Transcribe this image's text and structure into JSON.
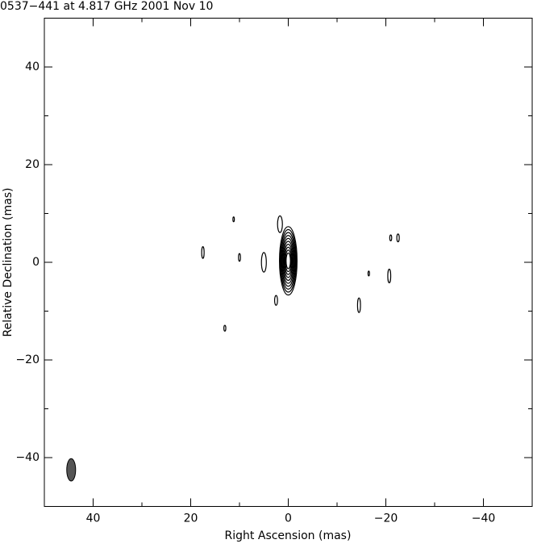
{
  "chart_data": {
    "type": "contour",
    "title": "0537−441 at 4.817 GHz 2001 Nov 10",
    "x_label": "Right Ascension  (mas)",
    "y_label": "Relative Declination  (mas)",
    "xlim": [
      50,
      -50
    ],
    "ylim": [
      -50,
      50
    ],
    "xticks": [
      40,
      20,
      0,
      {
        "value": -20,
        "label": "−20"
      },
      {
        "value": -40,
        "label": "−40"
      }
    ],
    "yticks": [
      {
        "value": -40,
        "label": "−40"
      },
      {
        "value": -20,
        "label": "−20"
      },
      0,
      20,
      40
    ],
    "xminorticks": [
      30,
      10,
      -10,
      -30
    ],
    "yminorticks": [
      -30,
      -10,
      10,
      30
    ],
    "contours": [
      {
        "x": 0,
        "y": 0.3,
        "rx": 1.8,
        "ry": 7
      },
      {
        "x": 0,
        "y": 0.3,
        "rx": 1.65,
        "ry": 6.4
      },
      {
        "x": 0,
        "y": 0.3,
        "rx": 1.5,
        "ry": 5.8
      },
      {
        "x": 0,
        "y": 0.3,
        "rx": 1.35,
        "ry": 5.2
      },
      {
        "x": 0,
        "y": 0.3,
        "rx": 1.2,
        "ry": 4.6
      },
      {
        "x": 0,
        "y": 0.3,
        "rx": 1.05,
        "ry": 4.0
      },
      {
        "x": 0,
        "y": 0.3,
        "rx": 0.9,
        "ry": 3.4
      },
      {
        "x": 0,
        "y": 0.3,
        "rx": 0.75,
        "ry": 2.8
      },
      {
        "x": 0,
        "y": 0.3,
        "rx": 0.6,
        "ry": 2.2
      },
      {
        "x": 0,
        "y": 0.3,
        "rx": 0.45,
        "ry": 1.6
      },
      {
        "x": 5,
        "y": 0,
        "rx": 0.5,
        "ry": 2
      },
      {
        "x": 1.7,
        "y": 7.8,
        "rx": 0.5,
        "ry": 1.7
      },
      {
        "x": 2.5,
        "y": -7.8,
        "rx": 0.3,
        "ry": 1
      },
      {
        "x": 10,
        "y": 1,
        "rx": 0.2,
        "ry": 0.8
      },
      {
        "x": 11.2,
        "y": 8.8,
        "rx": 0.15,
        "ry": 0.5
      },
      {
        "x": 17.5,
        "y": 2,
        "rx": 0.25,
        "ry": 1.2
      },
      {
        "x": 13,
        "y": -13.5,
        "rx": 0.2,
        "ry": 0.6
      },
      {
        "x": -16.5,
        "y": -2.3,
        "rx": 0.15,
        "ry": 0.5
      },
      {
        "x": -14.5,
        "y": -8.8,
        "rx": 0.3,
        "ry": 1.5
      },
      {
        "x": -20.7,
        "y": -2.8,
        "rx": 0.3,
        "ry": 1.4
      },
      {
        "x": -21,
        "y": 5,
        "rx": 0.2,
        "ry": 0.6
      },
      {
        "x": -22.5,
        "y": 5,
        "rx": 0.25,
        "ry": 0.8
      }
    ],
    "beam": {
      "x": 44.5,
      "y": -42.5,
      "rx": 0.7,
      "ry": 2.3,
      "color": "#555555"
    },
    "color": "#000000"
  }
}
